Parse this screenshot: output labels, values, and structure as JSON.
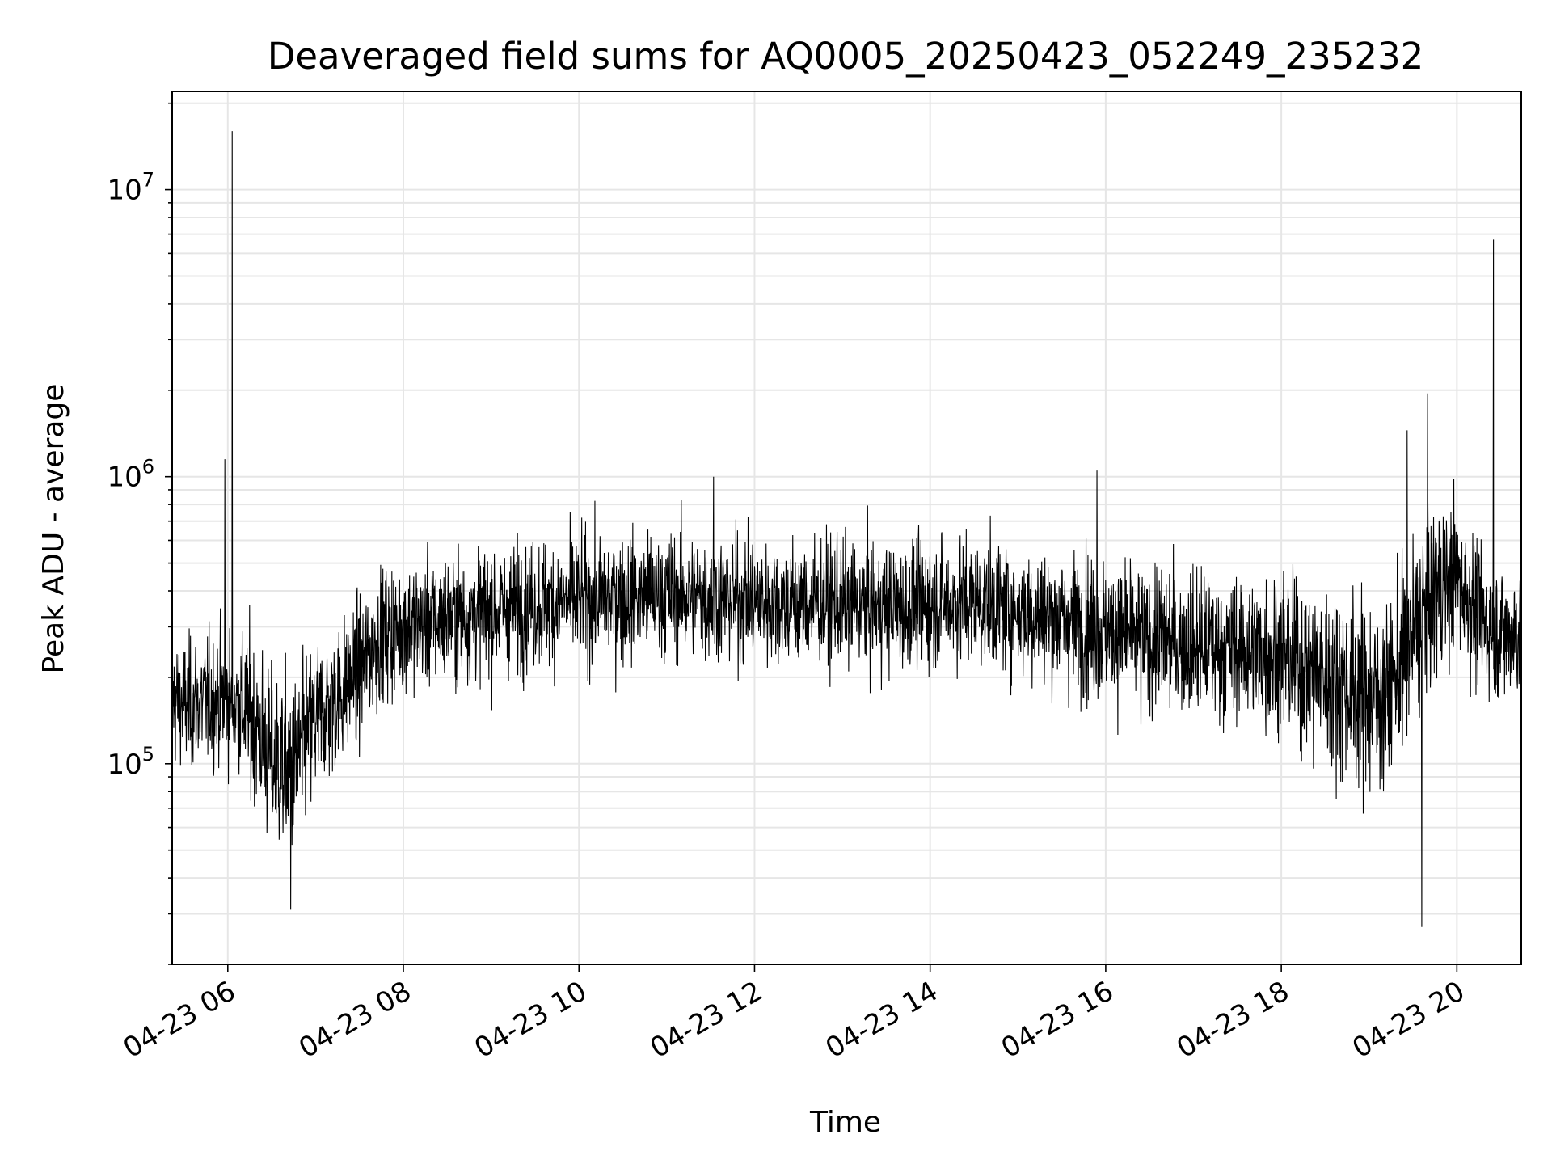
{
  "chart_data": {
    "type": "line",
    "title": "Deaveraged field sums for AQ0005_20250423_052249_235232",
    "xlabel": "Time",
    "ylabel": "Peak ADU - average",
    "yscale": "log",
    "xlim": [
      "04-23 05:22",
      "04-23 20:44"
    ],
    "ylim": [
      20000,
      22000000
    ],
    "grid": true,
    "line_color": "#000000",
    "x_ticks": [
      "04-23 06",
      "04-23 08",
      "04-23 10",
      "04-23 12",
      "04-23 14",
      "04-23 16",
      "04-23 18",
      "04-23 20"
    ],
    "y_ticks": [
      {
        "base": "10",
        "exp": "5",
        "value": 100000
      },
      {
        "base": "10",
        "exp": "6",
        "value": 1000000
      },
      {
        "base": "10",
        "exp": "7",
        "value": 10000000
      }
    ],
    "series": [
      {
        "x": [
          "04-23 05:22",
          "04-23 05:30",
          "04-23 05:45",
          "04-23 06:00",
          "04-23 06:15",
          "04-23 06:30",
          "04-23 06:45",
          "04-23 07:00",
          "04-23 07:15",
          "04-23 07:30",
          "04-23 07:45",
          "04-23 08:00",
          "04-23 08:30",
          "04-23 09:00",
          "04-23 09:30",
          "04-23 10:00",
          "04-23 10:30",
          "04-23 11:00",
          "04-23 11:30",
          "04-23 12:00",
          "04-23 12:30",
          "04-23 13:00",
          "04-23 13:30",
          "04-23 14:00",
          "04-23 14:30",
          "04-23 15:00",
          "04-23 15:30",
          "04-23 16:00",
          "04-23 16:30",
          "04-23 17:00",
          "04-23 17:30",
          "04-23 18:00",
          "04-23 18:30",
          "04-23 19:00",
          "04-23 19:15",
          "04-23 19:30",
          "04-23 19:45",
          "04-23 20:00",
          "04-23 20:15",
          "04-23 20:30",
          "04-23 20:44"
        ],
        "values": [
          170000,
          160000,
          165000,
          170000,
          150000,
          100000,
          95000,
          140000,
          170000,
          210000,
          280000,
          300000,
          320000,
          340000,
          360000,
          370000,
          380000,
          390000,
          380000,
          370000,
          360000,
          360000,
          350000,
          360000,
          370000,
          340000,
          320000,
          290000,
          270000,
          260000,
          250000,
          240000,
          200000,
          170000,
          180000,
          280000,
          400000,
          450000,
          320000,
          280000,
          290000
        ],
        "spread": [
          0.28,
          0.28,
          0.28,
          0.3,
          0.35,
          0.4,
          0.4,
          0.35,
          0.32,
          0.3,
          0.3,
          0.28,
          0.28,
          0.28,
          0.28,
          0.28,
          0.28,
          0.28,
          0.28,
          0.28,
          0.28,
          0.28,
          0.28,
          0.28,
          0.28,
          0.28,
          0.3,
          0.32,
          0.32,
          0.32,
          0.32,
          0.35,
          0.4,
          0.42,
          0.4,
          0.4,
          0.38,
          0.35,
          0.3,
          0.3,
          0.3
        ],
        "spikes": [
          {
            "x": "04-23 05:58",
            "value": 1150000
          },
          {
            "x": "04-23 06:03",
            "value": 16000000
          },
          {
            "x": "04-23 06:43",
            "value": 31000
          },
          {
            "x": "04-23 11:32",
            "value": 1000000
          },
          {
            "x": "04-23 15:54",
            "value": 1050000
          },
          {
            "x": "04-23 19:26",
            "value": 1450000
          },
          {
            "x": "04-23 19:40",
            "value": 1950000
          },
          {
            "x": "04-23 19:36",
            "value": 27000
          },
          {
            "x": "04-23 20:25",
            "value": 6700000
          }
        ]
      }
    ]
  }
}
